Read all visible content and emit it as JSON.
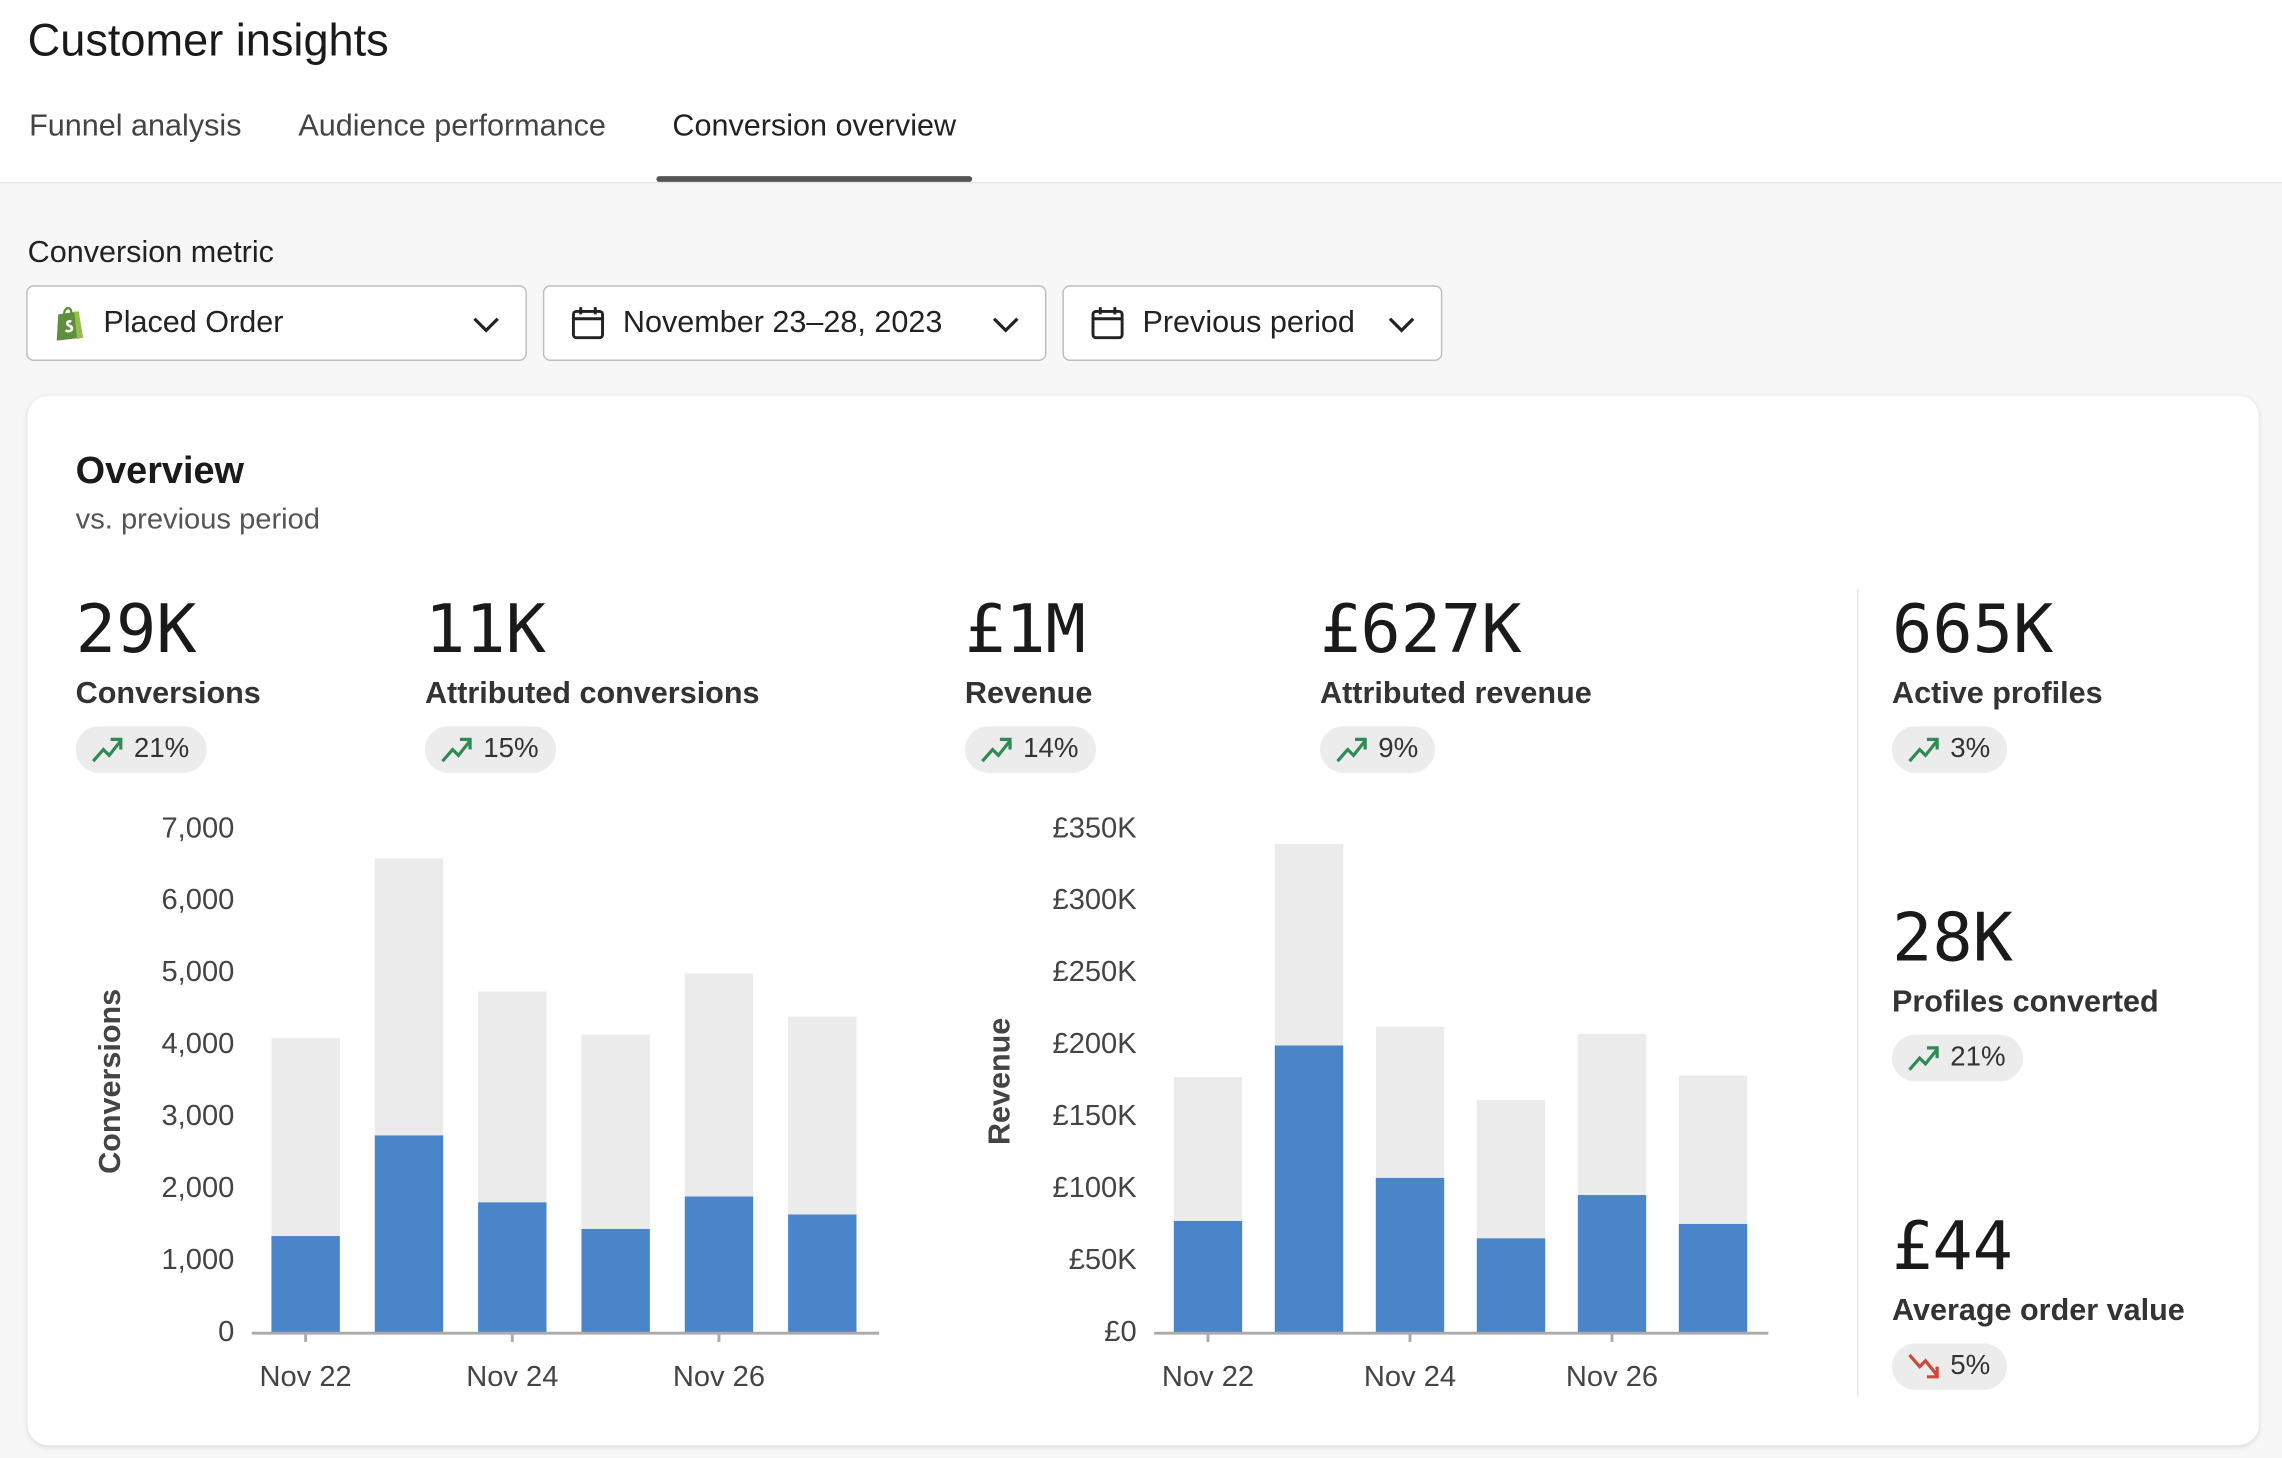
{
  "header": {
    "title": "Customer insights"
  },
  "tabs": [
    "Funnel analysis",
    "Audience performance",
    "Conversion overview"
  ],
  "active_tab": 2,
  "filters": {
    "label": "Conversion metric",
    "metric": "Placed Order",
    "date_range": "November 23–28, 2023",
    "comparison": "Previous period"
  },
  "overview": {
    "title": "Overview",
    "subtitle": "vs. previous period",
    "kpis": [
      {
        "value": "29K",
        "label": "Conversions",
        "change": "21%",
        "trend": "up"
      },
      {
        "value": "11K",
        "label": "Attributed conversions",
        "change": "15%",
        "trend": "up"
      },
      {
        "value": "£1M",
        "label": "Revenue",
        "change": "14%",
        "trend": "up"
      },
      {
        "value": "£627K",
        "label": "Attributed revenue",
        "change": "9%",
        "trend": "up"
      },
      {
        "value": "665K",
        "label": "Active profiles",
        "change": "3%",
        "trend": "up"
      },
      {
        "value": "28K",
        "label": "Profiles converted",
        "change": "21%",
        "trend": "up"
      },
      {
        "value": "£44",
        "label": "Average order value",
        "change": "5%",
        "trend": "down"
      }
    ]
  },
  "chart_data": [
    {
      "type": "bar",
      "stacked": true,
      "y_label": "Conversions",
      "categories": [
        "Nov 22",
        null,
        "Nov 24",
        null,
        "Nov 26",
        null
      ],
      "series": [
        {
          "color": "#4a84c9",
          "values": [
            1350,
            2750,
            1820,
            1450,
            1900,
            1650
          ]
        },
        {
          "color": "#ebebeb",
          "values": [
            2750,
            3850,
            2930,
            2700,
            3100,
            2750
          ]
        }
      ],
      "ylim": [
        0,
        7000
      ],
      "yticks": [
        0,
        {
          "value": 1000,
          "label": "1,000"
        },
        {
          "value": 2000,
          "label": "2,000"
        },
        {
          "value": 3000,
          "label": "3,000"
        },
        {
          "value": 4000,
          "label": "4,000"
        },
        {
          "value": 5000,
          "label": "5,000"
        },
        {
          "value": 6000,
          "label": "6,000"
        },
        {
          "value": 7000,
          "label": "7,000"
        }
      ]
    },
    {
      "type": "bar",
      "stacked": true,
      "y_label": "Revenue",
      "categories": [
        "Nov 22",
        null,
        "Nov 24",
        null,
        "Nov 26",
        null
      ],
      "series": [
        {
          "color": "#4a84c9",
          "values": [
            78000,
            200000,
            108000,
            66000,
            96000,
            76000
          ]
        },
        {
          "color": "#ebebeb",
          "values": [
            100000,
            140000,
            105000,
            96000,
            112000,
            103000
          ]
        }
      ],
      "ylim": [
        0,
        350000
      ],
      "yticks": [
        {
          "value": 0,
          "label": "£0"
        },
        {
          "value": 50000,
          "label": "£50K"
        },
        {
          "value": 100000,
          "label": "£100K"
        },
        {
          "value": 150000,
          "label": "£150K"
        },
        {
          "value": 200000,
          "label": "£200K"
        },
        {
          "value": 250000,
          "label": "£250K"
        },
        {
          "value": 300000,
          "label": "£300K"
        },
        {
          "value": 350000,
          "label": "£350K"
        }
      ]
    }
  ]
}
